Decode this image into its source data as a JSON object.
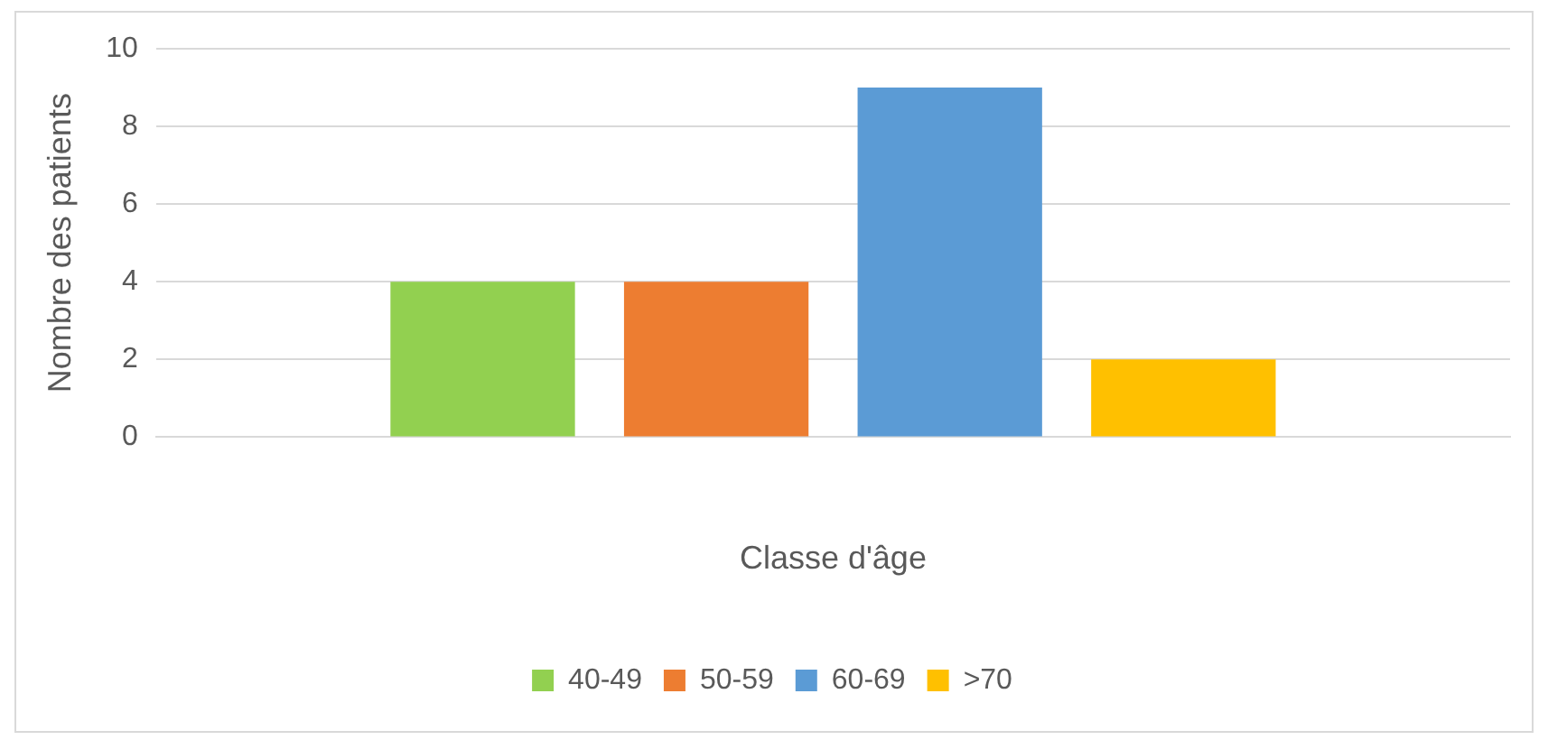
{
  "chart_data": {
    "type": "bar",
    "xlabel": "Classe d'âge",
    "ylabel": "Nombre des patients",
    "categories": [
      null
    ],
    "series": [
      {
        "name": "40-49",
        "color": "#92d050",
        "values": [
          4
        ]
      },
      {
        "name": "50-59",
        "color": "#ed7d31",
        "values": [
          4
        ]
      },
      {
        "name": "60-69",
        "color": "#5b9bd5",
        "values": [
          9
        ]
      },
      {
        "name": ">70",
        "color": "#ffc000",
        "values": [
          2
        ]
      }
    ],
    "ylim": [
      0,
      10
    ],
    "yticks": [
      0,
      2,
      4,
      6,
      8,
      10
    ],
    "grid": "y",
    "legend": "bottom"
  }
}
